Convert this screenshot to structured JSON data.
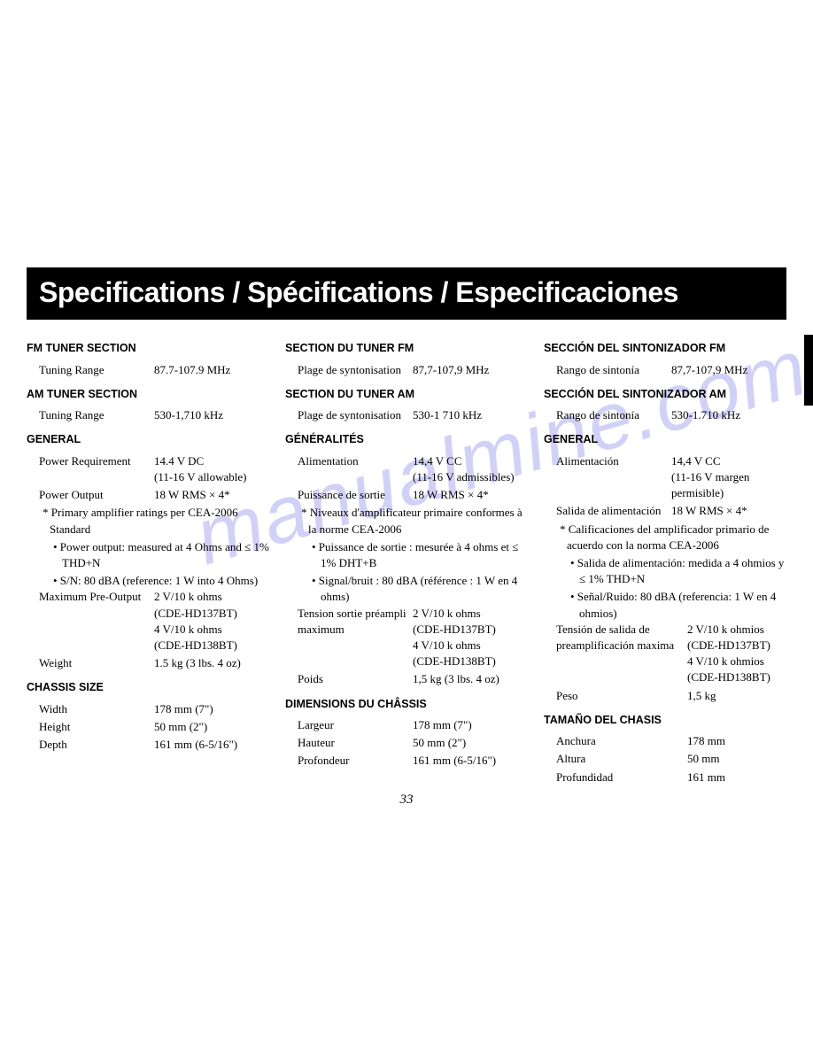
{
  "title": "Specifications / Spécifications / Especificaciones",
  "page_number": "33",
  "watermark": "manualmine.com",
  "colors": {
    "title_bg": "#000000",
    "title_fg": "#ffffff",
    "text": "#000000",
    "page_bg": "#ffffff",
    "watermark": "rgba(90,90,230,0.28)"
  },
  "en": {
    "fm_head": "FM TUNER SECTION",
    "fm_label": "Tuning Range",
    "fm_val": "87.7-107.9 MHz",
    "am_head": "AM TUNER SECTION",
    "am_label": "Tuning Range",
    "am_val": "530-1,710 kHz",
    "gen_head": "GENERAL",
    "pwr_req_l": "Power Requirement",
    "pwr_req_v1": "14.4 V DC",
    "pwr_req_v2": "(11-16 V allowable)",
    "pwr_out_l": "Power Output",
    "pwr_out_v": "18 W RMS × 4*",
    "note": "* Primary amplifier ratings per CEA-2006 Standard",
    "b1": "• Power output: measured at 4 Ohms and ≤ 1% THD+N",
    "b2": "• S/N: 80 dBA (reference: 1 W into 4 Ohms)",
    "maxpre_l": "Maximum Pre-Output",
    "maxpre_v1": "2 V/10 k ohms",
    "maxpre_v2": "(CDE-HD137BT)",
    "maxpre_v3": "4 V/10 k ohms",
    "maxpre_v4": "(CDE-HD138BT)",
    "weight_l": "Weight",
    "weight_v": "1.5 kg (3 lbs. 4 oz)",
    "chassis_head": "CHASSIS SIZE",
    "w_l": "Width",
    "w_v": "178 mm (7\")",
    "h_l": "Height",
    "h_v": "50 mm (2\")",
    "d_l": "Depth",
    "d_v": "161 mm (6-5/16\")"
  },
  "fr": {
    "fm_head": "SECTION DU TUNER FM",
    "fm_label": "Plage de syntonisation",
    "fm_val": "87,7-107,9 MHz",
    "am_head": "SECTION DU TUNER AM",
    "am_label": "Plage de syntonisation",
    "am_val": "530-1 710 kHz",
    "gen_head": "GÉNÉRALITÉS",
    "pwr_req_l": "Alimentation",
    "pwr_req_v1": "14,4 V CC",
    "pwr_req_v2": "(11-16 V admissibles)",
    "pwr_out_l": "Puissance de sortie",
    "pwr_out_v": "18 W RMS × 4*",
    "note": "* Niveaux d'amplificateur primaire conformes à la norme CEA-2006",
    "b1": "• Puissance de sortie : mesurée à 4 ohms et ≤ 1% DHT+B",
    "b2": "• Signal/bruit : 80 dBA (référence : 1 W en 4 ohms)",
    "maxpre_l": "Tension sortie préampli maximum",
    "maxpre_v1": "2 V/10 k ohms",
    "maxpre_v2": "(CDE-HD137BT)",
    "maxpre_v3": "4 V/10 k ohms",
    "maxpre_v4": "(CDE-HD138BT)",
    "weight_l": "Poids",
    "weight_v": "1,5 kg (3 lbs. 4 oz)",
    "chassis_head": "DIMENSIONS DU CHÂSSIS",
    "w_l": "Largeur",
    "w_v": "178 mm (7\")",
    "h_l": "Hauteur",
    "h_v": "50 mm (2\")",
    "d_l": "Profondeur",
    "d_v": "161 mm (6-5/16\")"
  },
  "es": {
    "fm_head": "SECCIÓN DEL SINTONIZADOR FM",
    "fm_label": "Rango de sintonía",
    "fm_val": "87,7-107,9 MHz",
    "am_head": "SECCIÓN DEL SINTONIZADOR AM",
    "am_label": "Rango de sintonía",
    "am_val": "530-1.710 kHz",
    "gen_head": "GENERAL",
    "pwr_req_l": "Alimentación",
    "pwr_req_v1": "14,4 V CC",
    "pwr_req_v2": "(11-16 V margen permisible)",
    "pwr_out_l": "Salida de alimentación",
    "pwr_out_v": "18 W RMS × 4*",
    "note": "* Calificaciones del amplificador primario de acuerdo con la norma CEA-2006",
    "b1": "• Salida de alimentación: medida a 4 ohmios y ≤ 1% THD+N",
    "b2": "• Señal/Ruido: 80 dBA (referencia: 1 W en 4 ohmios)",
    "maxpre_l": "Tensión de salida de preamplificación maxima",
    "maxpre_v1": "2 V/10 k ohmios",
    "maxpre_v2": "(CDE-HD137BT)",
    "maxpre_v3": "4 V/10 k ohmios",
    "maxpre_v4": "(CDE-HD138BT)",
    "weight_l": "Peso",
    "weight_v": "1,5 kg",
    "chassis_head": "TAMAÑO DEL CHASIS",
    "w_l": "Anchura",
    "w_v": "178 mm",
    "h_l": "Altura",
    "h_v": "50 mm",
    "d_l": "Profundidad",
    "d_v": "161 mm"
  }
}
